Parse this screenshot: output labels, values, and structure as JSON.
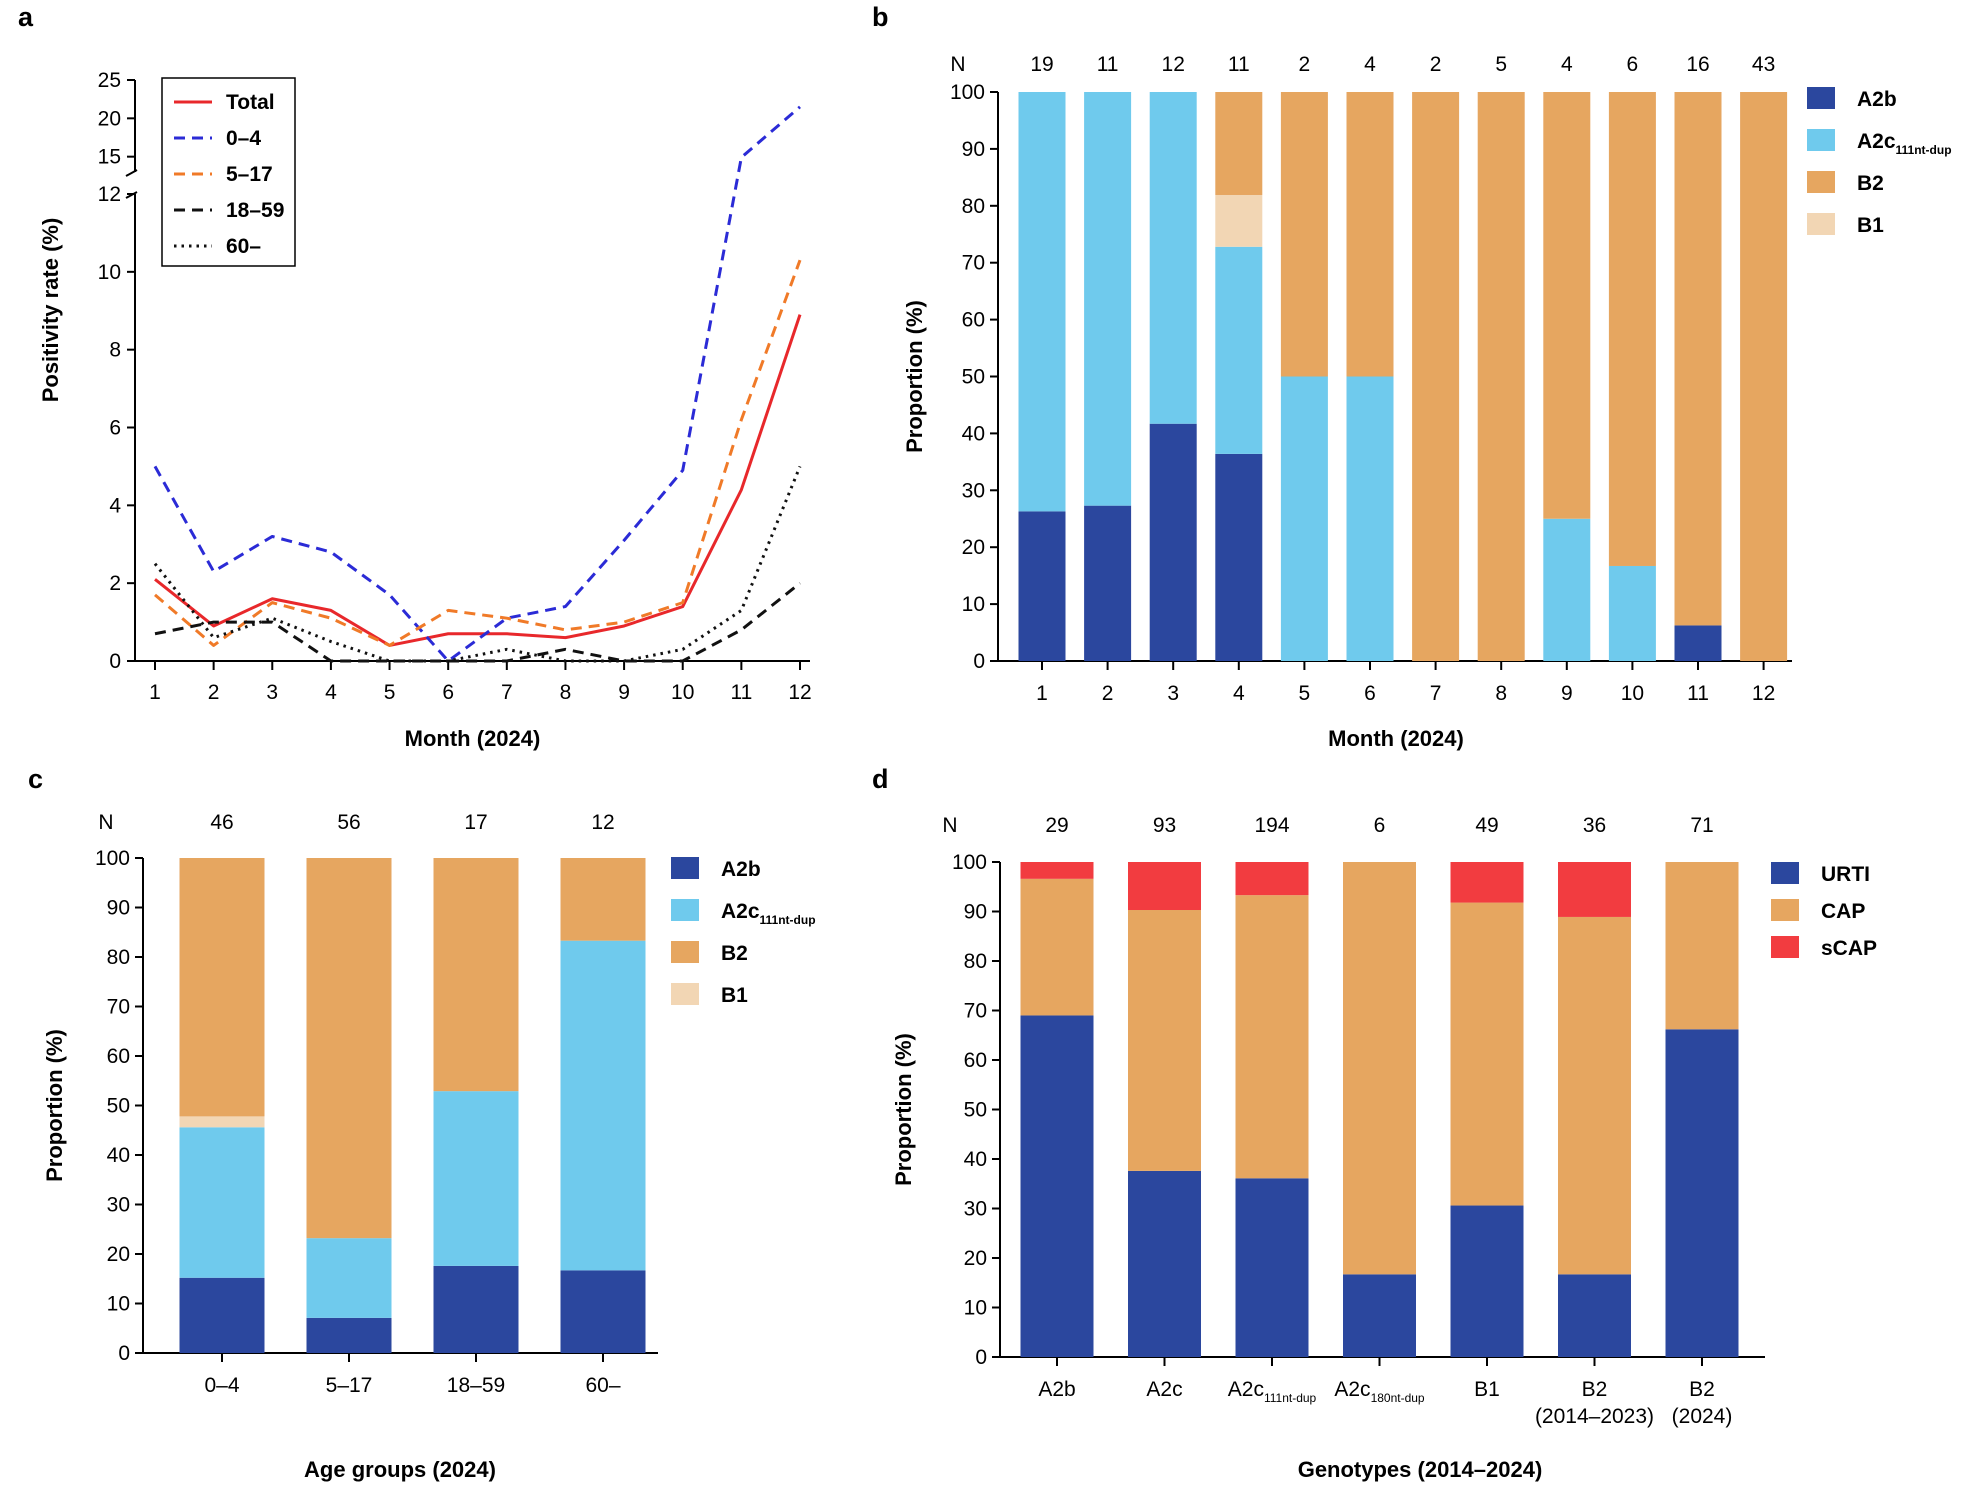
{
  "chart_data": [
    {
      "panel": "a",
      "type": "line",
      "title": "",
      "xlabel": "Month (2024)",
      "ylabel": "Positivity rate (%)",
      "x": [
        1,
        2,
        3,
        4,
        5,
        6,
        7,
        8,
        9,
        10,
        11,
        12
      ],
      "ylim_lower": [
        0,
        12
      ],
      "ylim_upper": [
        13,
        25
      ],
      "yticks_lower": [
        0,
        2,
        4,
        6,
        8,
        10,
        12
      ],
      "yticks_upper": [
        15,
        20,
        25
      ],
      "legend": "top-left",
      "series": [
        {
          "name": "Total",
          "color": "#e8282b",
          "dash": "solid",
          "values": [
            2.1,
            0.9,
            1.6,
            1.3,
            0.4,
            0.7,
            0.7,
            0.6,
            0.9,
            1.4,
            4.4,
            8.9
          ]
        },
        {
          "name": "0–4",
          "color": "#2b2bd6",
          "dash": "dashed",
          "values": [
            5.0,
            2.3,
            3.2,
            2.8,
            1.7,
            0.0,
            1.1,
            1.4,
            3.1,
            4.9,
            14.9,
            21.5
          ]
        },
        {
          "name": "5–17",
          "color": "#f07a28",
          "dash": "dashed",
          "values": [
            1.7,
            0.4,
            1.5,
            1.1,
            0.4,
            1.3,
            1.1,
            0.8,
            1.0,
            1.5,
            6.2,
            10.3
          ]
        },
        {
          "name": "18–59",
          "color": "#111111",
          "dash": "dashed",
          "values": [
            0.7,
            1.0,
            1.0,
            0.0,
            0.0,
            0.0,
            0.0,
            0.3,
            0.0,
            0.0,
            0.8,
            2.0
          ]
        },
        {
          "name": "60–",
          "color": "#111111",
          "dash": "dotted",
          "values": [
            2.5,
            0.6,
            1.1,
            0.5,
            0.0,
            0.0,
            0.3,
            0.0,
            0.0,
            0.3,
            1.3,
            5.0
          ]
        }
      ]
    },
    {
      "panel": "b",
      "type": "bar",
      "stacked": true,
      "xlabel": "Month (2024)",
      "ylabel": "Proportion (%)",
      "ylim": [
        0,
        100
      ],
      "yticks": [
        0,
        10,
        20,
        30,
        40,
        50,
        60,
        70,
        80,
        90,
        100
      ],
      "n_label": "N",
      "n": [
        19,
        11,
        12,
        11,
        2,
        4,
        2,
        5,
        4,
        6,
        16,
        43
      ],
      "categories": [
        "1",
        "2",
        "3",
        "4",
        "5",
        "6",
        "7",
        "8",
        "9",
        "10",
        "11",
        "12"
      ],
      "legend": "right",
      "series": [
        {
          "name": "A2b",
          "sub": "",
          "color": "#2b479e",
          "values": [
            26.3,
            27.3,
            41.7,
            36.4,
            0,
            0,
            0,
            0,
            0,
            0,
            6.25,
            0
          ]
        },
        {
          "name": "A2c",
          "sub": "111nt-dup",
          "color": "#6fcaed",
          "values": [
            73.7,
            72.7,
            58.3,
            36.4,
            50,
            50,
            0,
            0,
            25,
            16.7,
            0,
            0
          ]
        },
        {
          "name": "B1",
          "sub": "",
          "color": "#f2d6b4",
          "values": [
            0,
            0,
            0,
            9.1,
            0,
            0,
            0,
            0,
            0,
            0,
            0,
            0
          ]
        },
        {
          "name": "B2",
          "sub": "",
          "color": "#e6a660",
          "values": [
            0,
            0,
            0,
            18.1,
            50,
            50,
            100,
            100,
            75,
            83.3,
            93.75,
            100
          ]
        }
      ],
      "legend_order": [
        "A2b",
        "A2c",
        "B2",
        "B1"
      ]
    },
    {
      "panel": "c",
      "type": "bar",
      "stacked": true,
      "xlabel": "Age groups (2024)",
      "ylabel": "Proportion (%)",
      "ylim": [
        0,
        100
      ],
      "yticks": [
        0,
        10,
        20,
        30,
        40,
        50,
        60,
        70,
        80,
        90,
        100
      ],
      "n_label": "N",
      "n": [
        46,
        56,
        17,
        12
      ],
      "categories": [
        "0–4",
        "5–17",
        "18–59",
        "60–"
      ],
      "legend": "right",
      "series": [
        {
          "name": "A2b",
          "sub": "",
          "color": "#2b479e",
          "values": [
            15.2,
            7.1,
            17.6,
            16.7
          ]
        },
        {
          "name": "A2c",
          "sub": "111nt-dup",
          "color": "#6fcaed",
          "values": [
            30.4,
            16.1,
            35.3,
            66.6
          ]
        },
        {
          "name": "B1",
          "sub": "",
          "color": "#f2d6b4",
          "values": [
            2.2,
            0,
            0,
            0
          ]
        },
        {
          "name": "B2",
          "sub": "",
          "color": "#e6a660",
          "values": [
            52.2,
            76.8,
            47.1,
            16.7
          ]
        }
      ],
      "legend_order": [
        "A2b",
        "A2c",
        "B2",
        "B1"
      ]
    },
    {
      "panel": "d",
      "type": "bar",
      "stacked": true,
      "xlabel": "Genotypes (2014–2024)",
      "ylabel": "Proportion (%)",
      "ylim": [
        0,
        100
      ],
      "yticks": [
        0,
        10,
        20,
        30,
        40,
        50,
        60,
        70,
        80,
        90,
        100
      ],
      "n_label": "N",
      "n": [
        29,
        93,
        194,
        6,
        49,
        36,
        71
      ],
      "categories": [
        {
          "main": "A2b",
          "sub": "",
          "line2": ""
        },
        {
          "main": "A2c",
          "sub": "",
          "line2": ""
        },
        {
          "main": "A2c",
          "sub": "111nt-dup",
          "line2": ""
        },
        {
          "main": "A2c",
          "sub": "180nt-dup",
          "line2": ""
        },
        {
          "main": "B1",
          "sub": "",
          "line2": ""
        },
        {
          "main": "B2",
          "sub": "",
          "line2": "(2014–2023)"
        },
        {
          "main": "B2",
          "sub": "",
          "line2": "(2024)"
        }
      ],
      "legend": "right",
      "series": [
        {
          "name": "URTI",
          "sub": "",
          "color": "#2b479e",
          "values": [
            69.0,
            37.6,
            36.1,
            16.7,
            30.6,
            16.7,
            66.2
          ]
        },
        {
          "name": "CAP",
          "sub": "",
          "color": "#e6a660",
          "values": [
            27.6,
            52.7,
            57.2,
            83.3,
            61.2,
            72.2,
            33.8
          ]
        },
        {
          "name": "sCAP",
          "sub": "",
          "color": "#f23c40",
          "values": [
            3.4,
            9.7,
            6.7,
            0,
            8.2,
            11.1,
            0
          ]
        }
      ],
      "legend_order": [
        "URTI",
        "CAP",
        "sCAP"
      ]
    }
  ],
  "panel_labels": [
    "a",
    "b",
    "c",
    "d"
  ]
}
